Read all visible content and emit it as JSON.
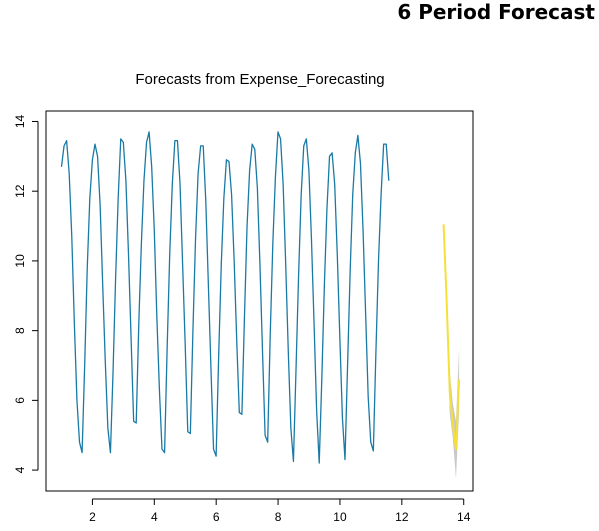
{
  "page": {
    "heading": "6 Period Forecast"
  },
  "chart_data": {
    "type": "line",
    "title": "Forecasts from Expense_Forecasting",
    "xlabel": "",
    "ylabel": "",
    "xlim": [
      0.5,
      14.3
    ],
    "ylim": [
      3.4,
      14.3
    ],
    "x_ticks": [
      2,
      4,
      6,
      8,
      10,
      12,
      14
    ],
    "y_ticks": [
      4,
      6,
      8,
      10,
      12,
      14
    ],
    "grid": false,
    "legend": "none",
    "series": [
      {
        "color": "#1a7aa6",
        "x_start": 1.0,
        "x_step": 0.0833,
        "values": [
          12.7,
          13.3,
          13.45,
          12.5,
          10.7,
          8.2,
          6.0,
          4.8,
          4.5,
          7.0,
          9.8,
          11.8,
          12.9,
          13.35,
          13.0,
          11.6,
          9.3,
          7.1,
          5.2,
          4.5,
          6.8,
          9.5,
          11.8,
          13.5,
          13.4,
          12.3,
          10.2,
          7.8,
          5.4,
          5.35,
          8.2,
          10.5,
          12.3,
          13.4,
          13.7,
          12.7,
          10.9,
          8.4,
          6.3,
          4.6,
          4.5,
          7.5,
          10.2,
          12.2,
          13.45,
          13.45,
          12.2,
          9.9,
          7.6,
          5.1,
          5.05,
          8.0,
          10.6,
          12.5,
          13.3,
          13.3,
          11.7,
          9.3,
          6.9,
          4.6,
          4.4,
          7.3,
          9.9,
          11.8,
          12.9,
          12.85,
          11.9,
          10.0,
          7.7,
          5.65,
          5.6,
          8.4,
          11.0,
          12.6,
          13.35,
          13.2,
          12.1,
          9.9,
          7.4,
          5.0,
          4.8,
          7.9,
          10.5,
          12.4,
          13.7,
          13.5,
          12.2,
          9.9,
          7.4,
          5.2,
          4.25,
          6.9,
          9.6,
          11.9,
          13.3,
          13.5,
          12.6,
          10.6,
          8.2,
          5.7,
          4.2,
          6.6,
          9.3,
          11.5,
          13.0,
          13.1,
          12.2,
          10.2,
          7.8,
          5.5,
          4.3,
          7.0,
          9.7,
          11.9,
          13.1,
          13.6,
          12.8,
          10.9,
          8.5,
          6.1,
          4.8,
          4.55,
          7.4,
          10.0,
          11.9,
          13.35,
          13.35,
          12.3
        ]
      },
      {
        "color": "#f5e03a",
        "x": [
          13.35,
          13.45,
          13.55,
          13.65,
          13.75,
          13.85
        ],
        "values": [
          11.05,
          8.8,
          6.2,
          5.3,
          4.6,
          6.6
        ]
      }
    ],
    "prediction_interval": {
      "color": "#c8c8c8",
      "x": [
        13.35,
        13.45,
        13.55,
        13.65,
        13.75,
        13.85
      ],
      "lower": [
        11.05,
        8.5,
        5.6,
        4.9,
        3.75,
        5.7
      ],
      "upper": [
        11.05,
        9.1,
        6.8,
        5.9,
        5.4,
        7.5
      ]
    }
  }
}
